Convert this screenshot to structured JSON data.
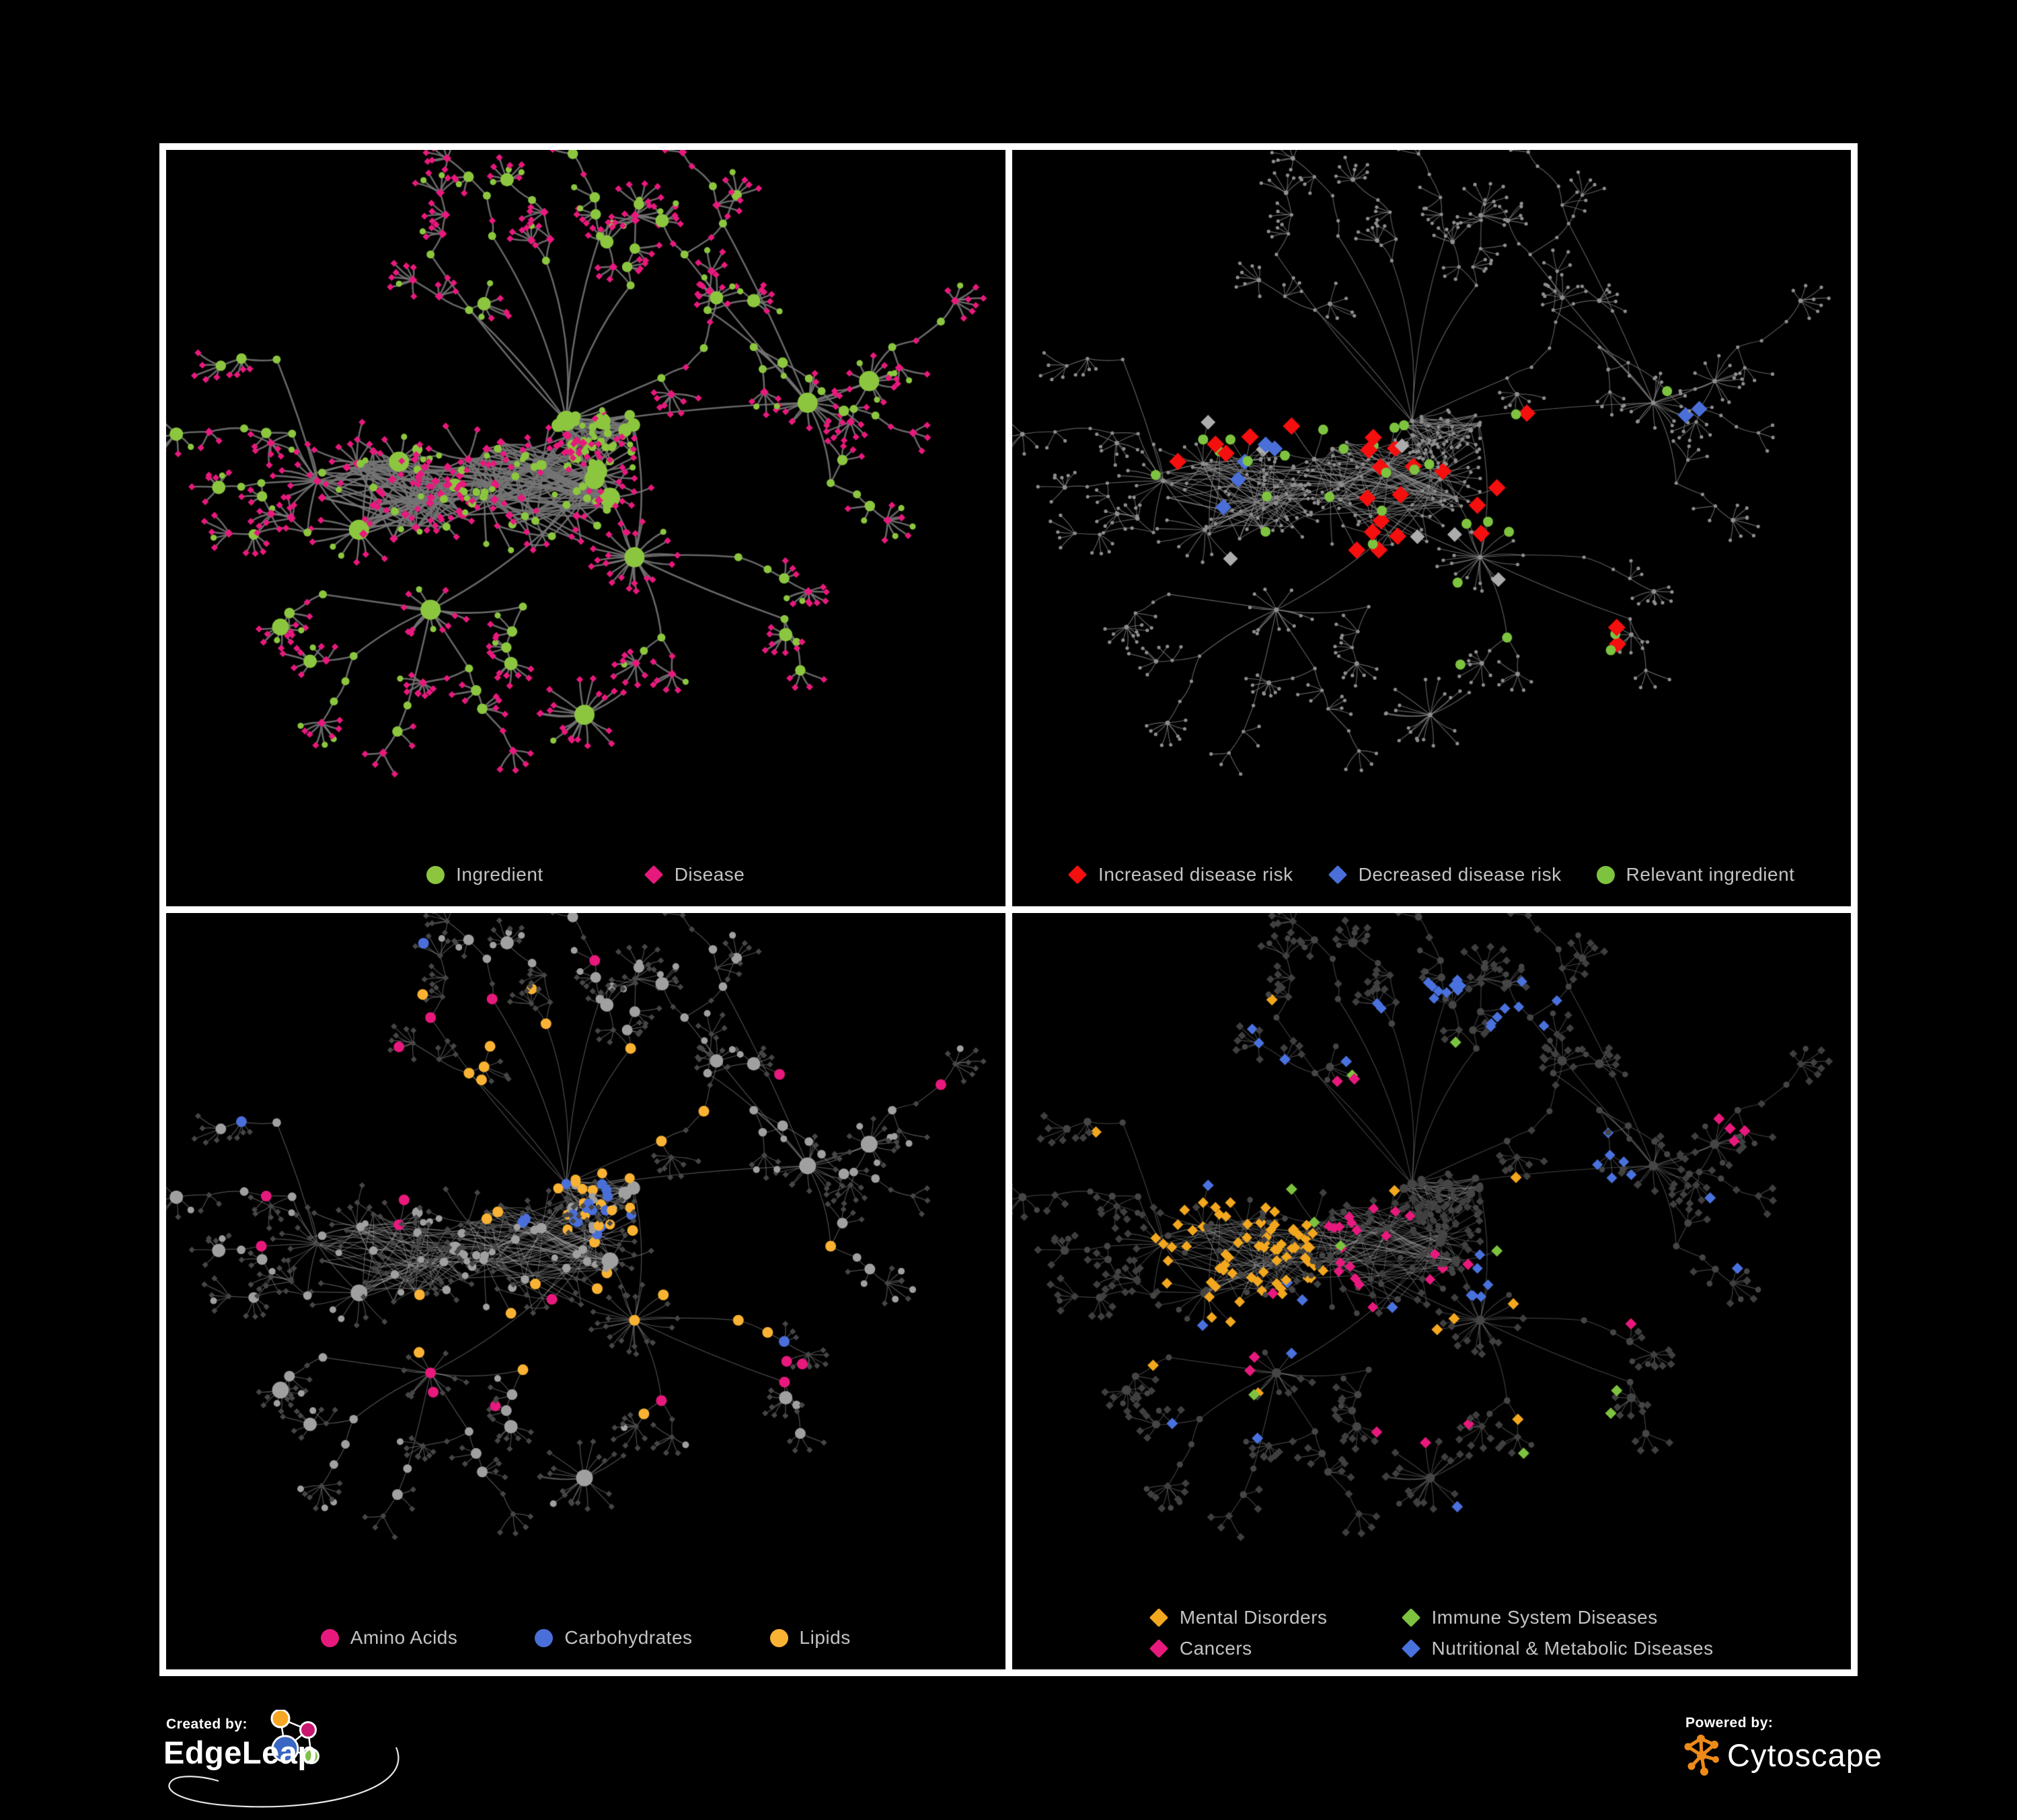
{
  "figure": {
    "background": "#000000",
    "frame_border_color": "#ffffff",
    "legend_text_color": "#c3c3c3"
  },
  "panels": [
    {
      "id": "ingredient-disease-network",
      "legend": [
        {
          "label": "Ingredient",
          "shape": "circle",
          "color": "#8CC63F"
        },
        {
          "label": "Disease",
          "shape": "diamond",
          "color": "#E8197D"
        }
      ],
      "colors": {
        "ingredient": "#8CC63F",
        "disease": "#E8197D",
        "edge": "#757575"
      }
    },
    {
      "id": "disease-risk-network",
      "legend": [
        {
          "label": "Increased disease risk",
          "shape": "diamond",
          "color": "#F50F0F"
        },
        {
          "label": "Decreased disease risk",
          "shape": "diamond",
          "color": "#4A6FD9"
        },
        {
          "label": "Relevant ingredient",
          "shape": "circle",
          "color": "#7DC33F"
        }
      ],
      "colors": {
        "base_node": "#8E8E8E",
        "edge": "#8A8A8A",
        "increased": "#F50F0F",
        "decreased": "#4A6FD9",
        "neutral": "#ACACAC",
        "relevant": "#7DC33F"
      }
    },
    {
      "id": "nutrient-class-network",
      "legend": [
        {
          "label": "Amino Acids",
          "shape": "circle",
          "color": "#E8197D"
        },
        {
          "label": "Carbohydrates",
          "shape": "circle",
          "color": "#4A6FD9"
        },
        {
          "label": "Lipids",
          "shape": "circle",
          "color": "#F9B233"
        }
      ],
      "colors": {
        "ingredient": "#A0A0A0",
        "disease": "#464646",
        "amino_acids": "#E8197D",
        "carbohydrates": "#4A6FD9",
        "lipids": "#F9B233",
        "edge": "#9B9B9B"
      }
    },
    {
      "id": "disease-class-network",
      "legend": [
        {
          "label": "Mental Disorders",
          "shape": "diamond",
          "color": "#F2A71F"
        },
        {
          "label": "Immune System Diseases",
          "shape": "diamond",
          "color": "#7DC33F"
        },
        {
          "label": "Cancers",
          "shape": "diamond",
          "color": "#E8197D"
        },
        {
          "label": "Nutritional & Metabolic Diseases",
          "shape": "diamond",
          "color": "#4A72DE"
        }
      ],
      "colors": {
        "ingredient": "#454545",
        "disease": "#3F3F3F",
        "mental": "#F2A71F",
        "immune": "#7DC33F",
        "cancers": "#E8197D",
        "nutritional": "#4A72DE",
        "edge": "#969696"
      }
    }
  ],
  "footer": {
    "created_by_label": "Created by:",
    "created_by_name": "EdgeLeap",
    "powered_by_label": "Powered by:",
    "powered_by_name": "Cytoscape",
    "cytoscape_logo_color": "#EE8B18",
    "edgeleap_logo_colors": {
      "orange": "#F5A623",
      "magenta": "#C9166E",
      "blue": "#3A66C4",
      "green": "#7DC242"
    }
  }
}
